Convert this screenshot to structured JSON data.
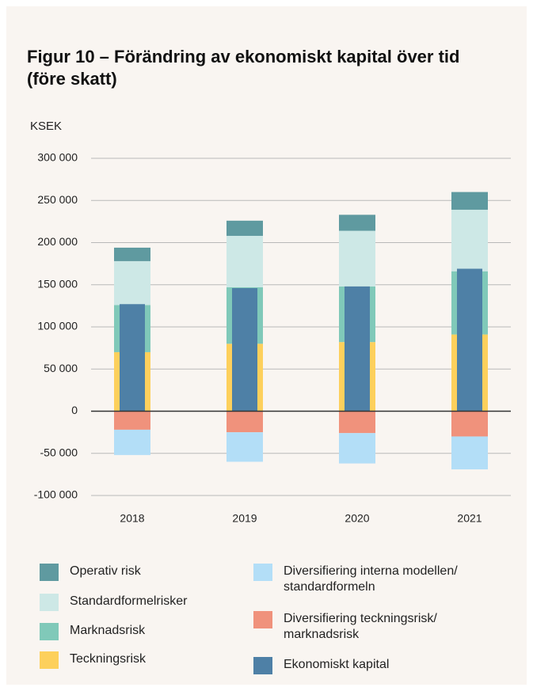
{
  "chart_data": {
    "type": "bar",
    "title": "Figur 10 – Förändring av ekonomiskt kapital över tid (före skatt)",
    "y_label": "KSEK",
    "categories": [
      "2018",
      "2019",
      "2020",
      "2021"
    ],
    "series": [
      {
        "name": "Teckningsrisk",
        "color": "#fdd05c",
        "values": [
          70000,
          80000,
          82000,
          91000
        ]
      },
      {
        "name": "Marknadsrisk",
        "color": "#80c9b9",
        "values": [
          56000,
          67000,
          66000,
          75000
        ]
      },
      {
        "name": "Standardformelrisker",
        "color": "#cde8e6",
        "values": [
          52000,
          61000,
          66000,
          73000
        ]
      },
      {
        "name": "Operativ risk",
        "color": "#5f9aa0",
        "values": [
          16000,
          18000,
          19000,
          21000
        ]
      },
      {
        "name": "Diversifiering teckningsrisk/ marknadsrisk",
        "color": "#f0927c",
        "values": [
          -22000,
          -25000,
          -26000,
          -30000
        ]
      },
      {
        "name": "Diversifiering interna modellen/ standardformeln",
        "color": "#b3def7",
        "values": [
          -30000,
          -35000,
          -36000,
          -39000
        ]
      },
      {
        "name": "Ekonomiskt kapital",
        "color": "#4e80a6",
        "values": [
          127000,
          146000,
          148000,
          169000
        ],
        "overlay": true
      }
    ],
    "ylim": [
      -100000,
      300000
    ],
    "yticks": [
      {
        "value": -100000,
        "label": "-100 000"
      },
      {
        "value": -50000,
        "label": "-50 000"
      },
      0,
      {
        "value": 50000,
        "label": "50 000"
      },
      {
        "value": 100000,
        "label": "100 000"
      },
      {
        "value": 150000,
        "label": "150 000"
      },
      {
        "value": 200000,
        "label": "200 000"
      },
      {
        "value": 250000,
        "label": "250 000"
      },
      {
        "value": 300000,
        "label": "300 000"
      }
    ],
    "grid": true
  }
}
